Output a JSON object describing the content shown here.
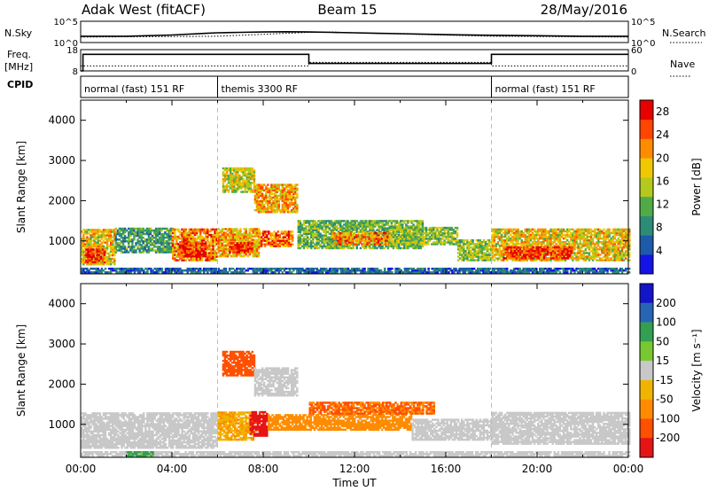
{
  "header": {
    "station": "Adak West (fitACF)",
    "beam": "Beam 15",
    "date": "28/May/2016"
  },
  "left_labels": {
    "nsky": "N.Sky",
    "freq_line1": "Freq.",
    "freq_line2": "[MHz]",
    "cpid": "CPID"
  },
  "right_labels": {
    "nsearch": "N.Search",
    "nave": "Nave"
  },
  "chart_data": [
    {
      "type": "line",
      "panel": "noise",
      "left_axis": {
        "label": "N.Sky",
        "scale": "log",
        "ticks": [
          "10^5",
          "10^0"
        ]
      },
      "right_axis": {
        "label": "N.Search",
        "scale": "log",
        "ticks": [
          "10^5",
          "10^0"
        ]
      },
      "series": [
        {
          "name": "N.Sky",
          "style": "solid",
          "x": [
            0,
            2,
            4,
            5.5,
            6,
            7,
            8,
            9,
            10,
            11,
            12,
            13,
            14,
            16,
            18,
            20,
            22,
            24
          ],
          "y": [
            30,
            30,
            60,
            150,
            200,
            250,
            300,
            350,
            300,
            250,
            200,
            150,
            120,
            70,
            50,
            40,
            30,
            30
          ]
        },
        {
          "name": "N.Search",
          "style": "dotted",
          "x": [
            0,
            6,
            9,
            10,
            11,
            12,
            18,
            24
          ],
          "y": [
            20,
            30,
            150,
            250,
            300,
            200,
            30,
            20
          ]
        }
      ]
    },
    {
      "type": "line",
      "panel": "frequency",
      "left_axis": {
        "label": "Freq. [MHz]",
        "ticks": [
          18,
          8
        ],
        "ylim": [
          8,
          18
        ]
      },
      "right_axis": {
        "label": "Nave",
        "ticks": [
          60,
          0
        ],
        "ylim": [
          0,
          60
        ]
      },
      "series": [
        {
          "name": "Freq.",
          "style": "solid",
          "x": [
            0,
            0.1,
            0.1,
            10,
            10,
            18,
            18,
            24
          ],
          "y": [
            8,
            8,
            15.8,
            15.8,
            11.5,
            11.5,
            15.8,
            15.8
          ]
        },
        {
          "name": "Nave",
          "style": "dotted",
          "x": [
            0,
            10,
            10,
            18,
            18,
            24
          ],
          "y": [
            14,
            14,
            24,
            24,
            14,
            14
          ]
        }
      ]
    },
    {
      "type": "table",
      "panel": "cpid",
      "segments": [
        {
          "start": 0,
          "end": 6,
          "label": "normal (fast) 151 RF"
        },
        {
          "start": 6,
          "end": 18,
          "label": "themis 3300 RF"
        },
        {
          "start": 18,
          "end": 24,
          "label": "normal (fast) 151 RF"
        }
      ]
    },
    {
      "type": "heatmap",
      "panel": "power",
      "ylabel": "Slant Range [km]",
      "ylim": [
        180,
        4500
      ],
      "yticks": [
        1000,
        2000,
        3000,
        4000
      ],
      "xlim": [
        0,
        24
      ],
      "colorbar": {
        "label": "Power [dB]",
        "ticks": [
          4,
          8,
          12,
          16,
          20,
          24,
          28
        ],
        "range": [
          0,
          30
        ],
        "colors": [
          "#1414e6",
          "#1e5aaa",
          "#2d8c78",
          "#50aa46",
          "#b4c81e",
          "#f0c800",
          "#ff8c00",
          "#ff4600",
          "#e60000"
        ]
      },
      "regions": [
        {
          "t0": 0,
          "t1": 1.5,
          "r0": 400,
          "r1": 1300,
          "level": 18
        },
        {
          "t0": 0.2,
          "t1": 1.0,
          "r0": 450,
          "r1": 800,
          "level": 27
        },
        {
          "t0": 1.5,
          "t1": 4.0,
          "r0": 700,
          "r1": 1300,
          "level": 10
        },
        {
          "t0": 4.0,
          "t1": 6.0,
          "r0": 500,
          "r1": 1300,
          "level": 22
        },
        {
          "t0": 4.3,
          "t1": 5.5,
          "r0": 600,
          "r1": 950,
          "level": 28
        },
        {
          "t0": 6.0,
          "t1": 7.8,
          "r0": 600,
          "r1": 1300,
          "level": 20
        },
        {
          "t0": 6.5,
          "t1": 7.5,
          "r0": 700,
          "r1": 950,
          "level": 27
        },
        {
          "t0": 6.2,
          "t1": 7.6,
          "r0": 2200,
          "r1": 2800,
          "level": 16
        },
        {
          "t0": 7.6,
          "t1": 9.5,
          "r0": 1700,
          "r1": 2400,
          "level": 20
        },
        {
          "t0": 7.8,
          "t1": 9.3,
          "r0": 850,
          "r1": 1250,
          "level": 24
        },
        {
          "t0": 9.5,
          "t1": 15.0,
          "r0": 800,
          "r1": 1500,
          "level": 12
        },
        {
          "t0": 11.0,
          "t1": 13.5,
          "r0": 900,
          "r1": 1200,
          "level": 22
        },
        {
          "t0": 13.5,
          "t1": 16.5,
          "r0": 900,
          "r1": 1350,
          "level": 14
        },
        {
          "t0": 16.5,
          "t1": 18.0,
          "r0": 500,
          "r1": 1000,
          "level": 14
        },
        {
          "t0": 18.0,
          "t1": 24.0,
          "r0": 500,
          "r1": 1300,
          "level": 18
        },
        {
          "t0": 18.5,
          "t1": 21.5,
          "r0": 550,
          "r1": 850,
          "level": 27
        },
        {
          "t0": 0,
          "t1": 24,
          "r0": 200,
          "r1": 330,
          "level": 6
        }
      ]
    },
    {
      "type": "heatmap",
      "panel": "velocity",
      "xlabel": "Time UT",
      "ylabel": "Slant Range [km]",
      "ylim": [
        180,
        4500
      ],
      "yticks": [
        1000,
        2000,
        3000,
        4000
      ],
      "xlim": [
        0,
        24
      ],
      "xticks": [
        "00:00",
        "04:00",
        "08:00",
        "12:00",
        "16:00",
        "20:00",
        "00:00"
      ],
      "colorbar": {
        "label": "Velocity [m s⁻¹]",
        "ticks": [
          200,
          100,
          50,
          15,
          -15,
          -50,
          -100,
          -200
        ],
        "colors": [
          "#1414c8",
          "#2864b4",
          "#32a050",
          "#78c832",
          "#c8c8c8",
          "#f0b400",
          "#ff8c00",
          "#ff5000",
          "#e61414"
        ]
      },
      "regions": [
        {
          "t0": 0,
          "t1": 6.0,
          "r0": 400,
          "r1": 1300,
          "level": 0
        },
        {
          "t0": 6.0,
          "t1": 7.6,
          "r0": 600,
          "r1": 1300,
          "level": -30
        },
        {
          "t0": 7.4,
          "t1": 8.2,
          "r0": 700,
          "r1": 1300,
          "level": -180
        },
        {
          "t0": 6.2,
          "t1": 7.6,
          "r0": 2200,
          "r1": 2800,
          "level": -120
        },
        {
          "t0": 7.6,
          "t1": 9.5,
          "r0": 1700,
          "r1": 2400,
          "level": 0
        },
        {
          "t0": 8.2,
          "t1": 14.5,
          "r0": 850,
          "r1": 1250,
          "level": -60
        },
        {
          "t0": 10.0,
          "t1": 15.5,
          "r0": 1250,
          "r1": 1550,
          "level": -80
        },
        {
          "t0": 14.5,
          "t1": 18.0,
          "r0": 600,
          "r1": 1100,
          "level": 0
        },
        {
          "t0": 18.0,
          "t1": 24.0,
          "r0": 500,
          "r1": 1300,
          "level": 0
        },
        {
          "t0": 0,
          "t1": 24,
          "r0": 200,
          "r1": 330,
          "level": 0
        },
        {
          "t0": 2.0,
          "t1": 3.2,
          "r0": 200,
          "r1": 300,
          "level": 40
        }
      ]
    }
  ],
  "colors": {
    "axis": "#000000",
    "dashed_divider": "#bbbbbb"
  }
}
